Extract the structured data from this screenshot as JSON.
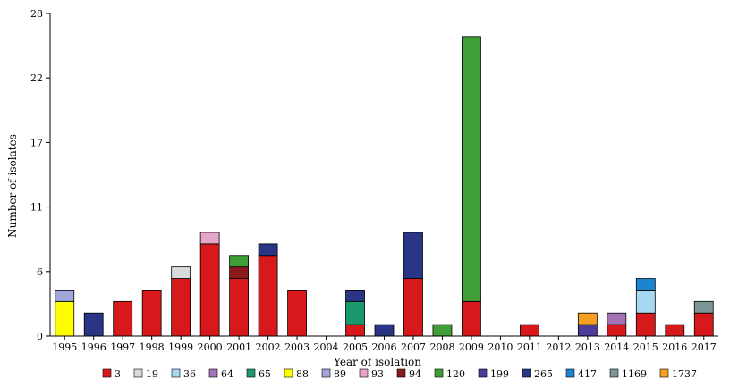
{
  "chart_data": {
    "type": "bar",
    "stacked": true,
    "title": "",
    "xlabel": "Year of isolation",
    "ylabel": "Number of isolates",
    "ylim": [
      0,
      28
    ],
    "yticks": [
      "0",
      "6",
      "11",
      "17",
      "22",
      "28"
    ],
    "ytick_values": [
      0,
      5.6,
      11.2,
      16.8,
      22.4,
      28
    ],
    "grid": false,
    "legend_position": "bottom",
    "categories": [
      "1995",
      "1996",
      "1997",
      "1998",
      "1999",
      "2000",
      "2001",
      "2002",
      "2003",
      "2004",
      "2005",
      "2006",
      "2007",
      "2008",
      "2009",
      "2010",
      "2011",
      "2012",
      "2013",
      "2014",
      "2015",
      "2016",
      "2017"
    ],
    "series": [
      {
        "name": "3",
        "color": "#d7191c",
        "values": [
          0,
          0,
          3,
          4,
          5,
          8,
          5,
          7,
          4,
          0,
          1,
          0,
          5,
          0,
          3,
          0,
          1,
          0,
          0,
          1,
          2,
          1,
          2
        ]
      },
      {
        "name": "19",
        "color": "#d9d9d9",
        "values": [
          0,
          0,
          0,
          0,
          1,
          0,
          0,
          0,
          0,
          0,
          0,
          0,
          0,
          0,
          0,
          0,
          0,
          0,
          0,
          0,
          0,
          0,
          0
        ]
      },
      {
        "name": "36",
        "color": "#a6d8f0",
        "values": [
          0,
          0,
          0,
          0,
          0,
          0,
          0,
          0,
          0,
          0,
          0,
          0,
          0,
          0,
          0,
          0,
          0,
          0,
          0,
          0,
          2,
          0,
          0
        ]
      },
      {
        "name": "64",
        "color": "#a374b3",
        "values": [
          0,
          0,
          0,
          0,
          0,
          0,
          0,
          0,
          0,
          0,
          0,
          0,
          0,
          0,
          0,
          0,
          0,
          0,
          0,
          1,
          0,
          0,
          0
        ]
      },
      {
        "name": "65",
        "color": "#1a9a6c",
        "values": [
          0,
          0,
          0,
          0,
          0,
          0,
          0,
          0,
          0,
          0,
          2,
          0,
          0,
          0,
          0,
          0,
          0,
          0,
          0,
          0,
          0,
          0,
          0
        ]
      },
      {
        "name": "88",
        "color": "#ffff00",
        "values": [
          3,
          0,
          0,
          0,
          0,
          0,
          0,
          0,
          0,
          0,
          0,
          0,
          0,
          0,
          0,
          0,
          0,
          0,
          0,
          0,
          0,
          0,
          0
        ]
      },
      {
        "name": "89",
        "color": "#a3a7d8",
        "values": [
          1,
          0,
          0,
          0,
          0,
          0,
          0,
          0,
          0,
          0,
          0,
          0,
          0,
          0,
          0,
          0,
          0,
          0,
          0,
          0,
          0,
          0,
          0
        ]
      },
      {
        "name": "93",
        "color": "#e6a6c8",
        "values": [
          0,
          0,
          0,
          0,
          0,
          1,
          0,
          0,
          0,
          0,
          0,
          0,
          0,
          0,
          0,
          0,
          0,
          0,
          0,
          0,
          0,
          0,
          0
        ]
      },
      {
        "name": "94",
        "color": "#8b1a1a",
        "values": [
          0,
          0,
          0,
          0,
          0,
          0,
          1,
          0,
          0,
          0,
          0,
          0,
          0,
          0,
          0,
          0,
          0,
          0,
          0,
          0,
          0,
          0,
          0
        ]
      },
      {
        "name": "120",
        "color": "#3f9e35",
        "values": [
          0,
          0,
          0,
          0,
          0,
          0,
          1,
          0,
          0,
          0,
          0,
          0,
          0,
          1,
          23,
          0,
          0,
          0,
          0,
          0,
          0,
          0,
          0
        ]
      },
      {
        "name": "199",
        "color": "#4b3d9a",
        "values": [
          0,
          0,
          0,
          0,
          0,
          0,
          0,
          0,
          0,
          0,
          0,
          0,
          0,
          0,
          0,
          0,
          0,
          0,
          1,
          0,
          0,
          0,
          0
        ]
      },
      {
        "name": "265",
        "color": "#2a3585",
        "values": [
          0,
          2,
          0,
          0,
          0,
          0,
          0,
          1,
          0,
          0,
          1,
          1,
          4,
          0,
          0,
          0,
          0,
          0,
          0,
          0,
          0,
          0,
          0
        ]
      },
      {
        "name": "417",
        "color": "#1a86d0",
        "values": [
          0,
          0,
          0,
          0,
          0,
          0,
          0,
          0,
          0,
          0,
          0,
          0,
          0,
          0,
          0,
          0,
          0,
          0,
          0,
          0,
          1,
          0,
          0
        ]
      },
      {
        "name": "1169",
        "color": "#7d9695",
        "values": [
          0,
          0,
          0,
          0,
          0,
          0,
          0,
          0,
          0,
          0,
          0,
          0,
          0,
          0,
          0,
          0,
          0,
          0,
          0,
          0,
          0,
          0,
          1
        ]
      },
      {
        "name": "1737",
        "color": "#f5a020",
        "values": [
          0,
          0,
          0,
          0,
          0,
          0,
          0,
          0,
          0,
          0,
          0,
          0,
          0,
          0,
          0,
          0,
          0,
          0,
          1,
          0,
          0,
          0,
          0
        ]
      }
    ]
  }
}
